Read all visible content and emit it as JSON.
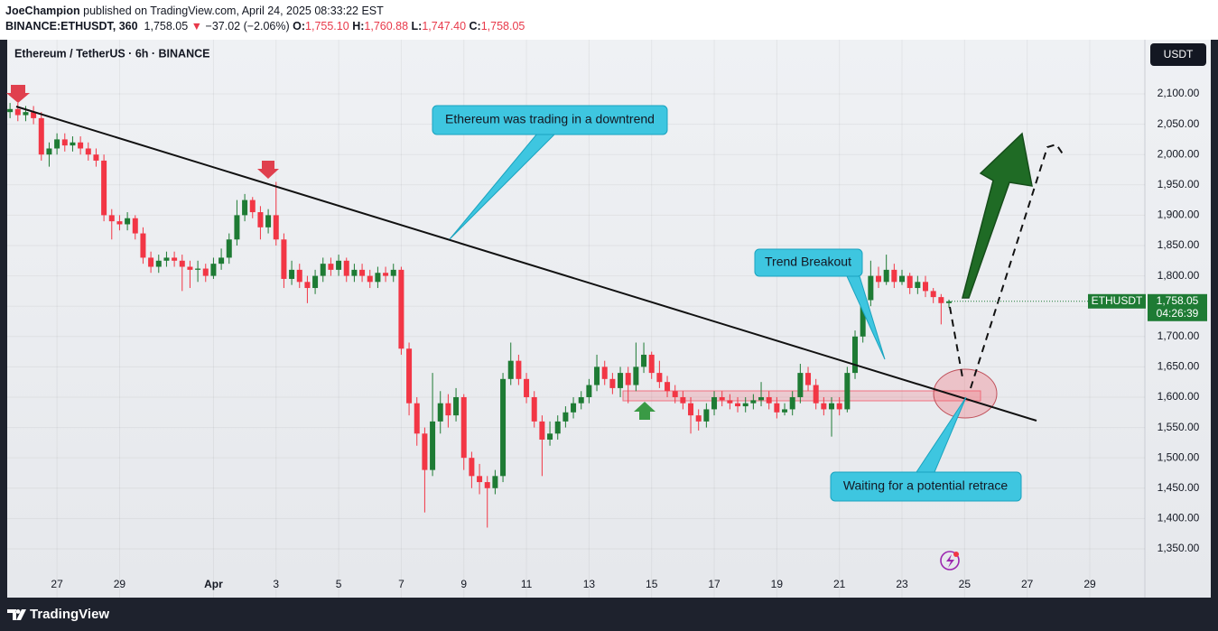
{
  "header": {
    "author": "JoeChampion",
    "published": "published on TradingView.com, April 24, 2025 08:33:22 EST",
    "symbol": "BINANCE:ETHUSDT, 360",
    "last": "1,758.05",
    "arrow": "▼",
    "change": "−37.02 (−2.06%)",
    "o_label": "O:",
    "o": "1,755.10",
    "h_label": "H:",
    "h": "1,760.88",
    "l_label": "L:",
    "l": "1,747.40",
    "c_label": "C:",
    "c": "1,758.05"
  },
  "currency_button": "USDT",
  "footer": {
    "brand": "TradingView"
  },
  "chart_data": {
    "type": "candlestick",
    "title": "Ethereum / TetherUS · 6h · BINANCE",
    "up_color": "#1e7b34",
    "down_color": "#f23645",
    "grid": true,
    "x": [
      25.5,
      25.75,
      26,
      26.25,
      26.5,
      26.75,
      27,
      27.25,
      27.5,
      27.75,
      28,
      28.25,
      28.5,
      28.75,
      29,
      29.25,
      29.5,
      29.75,
      30,
      30.25,
      30.5,
      30.75,
      31,
      31.25,
      31.5,
      31.75,
      32,
      32.25,
      32.5,
      32.75,
      33,
      33.25,
      33.5,
      33.75,
      34,
      34.25,
      34.5,
      34.75,
      35,
      35.25,
      35.5,
      35.75,
      36,
      36.25,
      36.5,
      36.75,
      37,
      37.25,
      37.5,
      37.75,
      38,
      38.25,
      38.5,
      38.75,
      39,
      39.25,
      39.5,
      39.75,
      40,
      40.25,
      40.5,
      40.75,
      41,
      41.25,
      41.5,
      41.75,
      42,
      42.25,
      42.5,
      42.75,
      43,
      43.25,
      43.5,
      43.75,
      44,
      44.25,
      44.5,
      44.75,
      45,
      45.25,
      45.5,
      45.75,
      46,
      46.25,
      46.5,
      46.75,
      47,
      47.25,
      47.5,
      47.75,
      48,
      48.25,
      48.5,
      48.75,
      49,
      49.25,
      49.5,
      49.75,
      50,
      50.25,
      50.5,
      50.75,
      51,
      51.25,
      51.5,
      51.75,
      52,
      52.25,
      52.5,
      52.75,
      53,
      53.25,
      53.5,
      53.75,
      54,
      54.25,
      54.5,
      54.75,
      55,
      55.25,
      55.5
    ],
    "open": [
      2070,
      2075,
      2065,
      2070,
      2060,
      2000,
      2010,
      2025,
      2015,
      2020,
      2010,
      2000,
      1990,
      1900,
      1890,
      1885,
      1895,
      1870,
      1830,
      1815,
      1825,
      1830,
      1825,
      1815,
      1810,
      1812,
      1800,
      1820,
      1830,
      1860,
      1900,
      1925,
      1905,
      1880,
      1900,
      1860,
      1795,
      1810,
      1790,
      1780,
      1800,
      1820,
      1810,
      1825,
      1800,
      1810,
      1800,
      1790,
      1805,
      1800,
      1810,
      1680,
      1590,
      1540,
      1480,
      1560,
      1590,
      1570,
      1600,
      1500,
      1470,
      1460,
      1450,
      1470,
      1630,
      1660,
      1630,
      1600,
      1560,
      1530,
      1540,
      1560,
      1575,
      1590,
      1600,
      1620,
      1650,
      1630,
      1615,
      1640,
      1620,
      1650,
      1670,
      1640,
      1625,
      1610,
      1600,
      1590,
      1570,
      1560,
      1580,
      1600,
      1595,
      1590,
      1585,
      1590,
      1595,
      1600,
      1590,
      1575,
      1580,
      1600,
      1640,
      1620,
      1590,
      1580,
      1590,
      1580,
      1640,
      1700,
      1760,
      1800,
      1790,
      1810,
      1790,
      1800,
      1780,
      1790,
      1775,
      1765,
      1755.1
    ],
    "high": [
      2085,
      2085,
      2080,
      2080,
      2070,
      2020,
      2035,
      2035,
      2030,
      2030,
      2020,
      2010,
      2000,
      1910,
      1900,
      1905,
      1900,
      1880,
      1840,
      1835,
      1840,
      1840,
      1835,
      1825,
      1825,
      1820,
      1830,
      1845,
      1870,
      1925,
      1935,
      1930,
      1915,
      1910,
      1955,
      1870,
      1825,
      1820,
      1800,
      1810,
      1830,
      1830,
      1835,
      1830,
      1820,
      1820,
      1810,
      1815,
      1815,
      1820,
      1815,
      1690,
      1600,
      1550,
      1640,
      1610,
      1605,
      1615,
      1605,
      1510,
      1490,
      1470,
      1480,
      1640,
      1690,
      1670,
      1640,
      1610,
      1570,
      1560,
      1570,
      1585,
      1600,
      1610,
      1630,
      1670,
      1660,
      1640,
      1650,
      1650,
      1690,
      1690,
      1675,
      1660,
      1635,
      1620,
      1610,
      1600,
      1580,
      1590,
      1610,
      1610,
      1605,
      1600,
      1600,
      1605,
      1625,
      1610,
      1600,
      1590,
      1610,
      1655,
      1650,
      1630,
      1600,
      1600,
      1600,
      1650,
      1710,
      1770,
      1825,
      1815,
      1835,
      1820,
      1810,
      1805,
      1800,
      1800,
      1780,
      1770,
      1760.88
    ],
    "low": [
      2060,
      2055,
      2055,
      2050,
      1990,
      1980,
      2000,
      2005,
      2005,
      2000,
      1990,
      1980,
      1890,
      1860,
      1875,
      1875,
      1860,
      1820,
      1805,
      1805,
      1815,
      1815,
      1775,
      1780,
      1790,
      1790,
      1795,
      1810,
      1820,
      1850,
      1890,
      1895,
      1860,
      1870,
      1850,
      1780,
      1785,
      1780,
      1755,
      1770,
      1790,
      1800,
      1800,
      1790,
      1790,
      1790,
      1780,
      1780,
      1790,
      1790,
      1670,
      1570,
      1520,
      1410,
      1470,
      1540,
      1550,
      1560,
      1480,
      1450,
      1440,
      1385,
      1440,
      1460,
      1620,
      1620,
      1590,
      1550,
      1470,
      1520,
      1530,
      1550,
      1565,
      1580,
      1590,
      1610,
      1620,
      1605,
      1600,
      1590,
      1610,
      1640,
      1630,
      1615,
      1600,
      1590,
      1580,
      1540,
      1545,
      1550,
      1570,
      1585,
      1580,
      1575,
      1575,
      1580,
      1585,
      1580,
      1565,
      1570,
      1570,
      1590,
      1610,
      1580,
      1570,
      1535,
      1570,
      1575,
      1630,
      1690,
      1750,
      1780,
      1785,
      1780,
      1785,
      1770,
      1770,
      1765,
      1755,
      1720,
      1747.4
    ],
    "close": [
      2075,
      2065,
      2070,
      2060,
      2000,
      2010,
      2025,
      2015,
      2020,
      2010,
      2000,
      1990,
      1900,
      1890,
      1885,
      1895,
      1870,
      1830,
      1815,
      1825,
      1830,
      1825,
      1815,
      1810,
      1812,
      1800,
      1820,
      1830,
      1860,
      1900,
      1925,
      1905,
      1880,
      1900,
      1860,
      1795,
      1810,
      1790,
      1780,
      1800,
      1820,
      1810,
      1825,
      1800,
      1810,
      1800,
      1790,
      1805,
      1800,
      1810,
      1680,
      1590,
      1540,
      1480,
      1560,
      1590,
      1570,
      1600,
      1500,
      1470,
      1460,
      1450,
      1470,
      1630,
      1660,
      1630,
      1600,
      1560,
      1530,
      1540,
      1560,
      1575,
      1590,
      1600,
      1620,
      1650,
      1630,
      1615,
      1640,
      1620,
      1650,
      1670,
      1640,
      1625,
      1610,
      1600,
      1590,
      1570,
      1560,
      1580,
      1600,
      1595,
      1590,
      1585,
      1590,
      1595,
      1600,
      1590,
      1575,
      1580,
      1600,
      1640,
      1620,
      1590,
      1580,
      1590,
      1580,
      1640,
      1700,
      1760,
      1800,
      1790,
      1810,
      1790,
      1800,
      1780,
      1790,
      1775,
      1765,
      1755.1,
      1758.05
    ],
    "xlim": [
      25.41,
      61.76
    ],
    "xticks": [
      27,
      29,
      {
        "value": 32,
        "label": "Apr"
      },
      {
        "value": 34,
        "label": "3"
      },
      {
        "value": 36,
        "label": "5"
      },
      {
        "value": 38,
        "label": "7"
      },
      {
        "value": 40,
        "label": "9"
      },
      {
        "value": 42,
        "label": "11"
      },
      {
        "value": 44,
        "label": "13"
      },
      {
        "value": 46,
        "label": "15"
      },
      {
        "value": 48,
        "label": "17"
      },
      {
        "value": 50,
        "label": "19"
      },
      {
        "value": 52,
        "label": "21"
      },
      {
        "value": 54,
        "label": "23"
      },
      {
        "value": 56,
        "label": "25"
      },
      {
        "value": 58,
        "label": "27"
      },
      {
        "value": 60,
        "label": "29"
      }
    ],
    "ylim": [
      1269.6,
      2189.3
    ],
    "yticks": [
      {
        "value": 1350,
        "label": "1,350.00"
      },
      {
        "value": 1400,
        "label": "1,400.00"
      },
      {
        "value": 1450,
        "label": "1,450.00"
      },
      {
        "value": 1500,
        "label": "1,500.00"
      },
      {
        "value": 1550,
        "label": "1,550.00"
      },
      {
        "value": 1600,
        "label": "1,600.00"
      },
      {
        "value": 1650,
        "label": "1,650.00"
      },
      {
        "value": 1700,
        "label": "1,700.00"
      },
      {
        "value": 1750,
        "label": "1,750.00"
      },
      {
        "value": 1800,
        "label": "1,800.00"
      },
      {
        "value": 1850,
        "label": "1,850.00"
      },
      {
        "value": 1900,
        "label": "1,900.00"
      },
      {
        "value": 1950,
        "label": "1,950.00"
      },
      {
        "value": 2000,
        "label": "2,000.00"
      },
      {
        "value": 2050,
        "label": "2,050.00"
      },
      {
        "value": 2100,
        "label": "2,100.00"
      }
    ],
    "symbol_label": "ETHUSDT",
    "last_price_label": "1,758.05",
    "countdown": "04:26:39",
    "annotations": [
      "Ethereum was trading in a downtrend",
      "Trend Breakout",
      "Waiting for a potential retrace"
    ]
  }
}
